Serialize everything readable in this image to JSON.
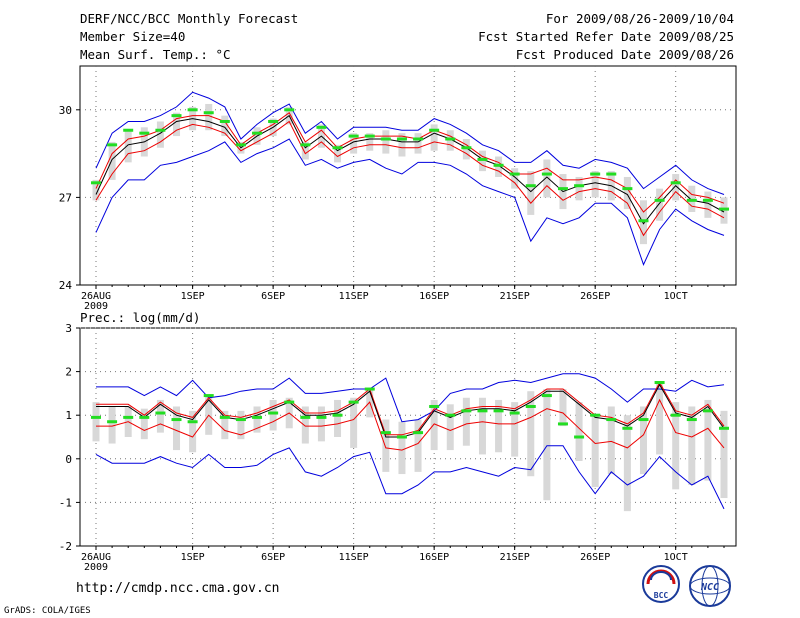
{
  "header": {
    "title": "DERF/NCC/BCC Monthly Forecast",
    "member_size": "Member Size=40",
    "variable": "Mean Surf. Temp.: °C",
    "period": "For 2009/08/26-2009/10/04",
    "fcst_started": "Fcst Started Refer Date 2009/08/25",
    "fcst_produced": "Fcst Produced Date 2009/08/26"
  },
  "footer": {
    "url": "http://cmdp.ncc.cma.gov.cn",
    "grads": "GrADS: COLA/IGES",
    "logo_bcc": "BCC",
    "logo_ncc": "NCC"
  },
  "colors": {
    "max_min": "#0000dd",
    "mean": "#000000",
    "pm_sd": "#ee0000",
    "median": "#22dd22",
    "spread_bar": "#d8d8d8"
  },
  "chart_data": [
    {
      "type": "line",
      "id": "temperature",
      "title": "",
      "ylabel": "Mean Surf. Temp.: °C",
      "ylim": [
        24,
        31.5
      ],
      "yticks": [
        24,
        27,
        30
      ],
      "grid": true,
      "day_index_range": [
        0,
        39
      ],
      "xtick_labels": [
        {
          "day": 0,
          "label": "26AUG",
          "sub": "2009"
        },
        {
          "day": 6,
          "label": "1SEP"
        },
        {
          "day": 11,
          "label": "6SEP"
        },
        {
          "day": 16,
          "label": "11SEP"
        },
        {
          "day": 21,
          "label": "16SEP"
        },
        {
          "day": 26,
          "label": "21SEP"
        },
        {
          "day": 31,
          "label": "26SEP"
        },
        {
          "day": 36,
          "label": "1OCT"
        }
      ],
      "series": [
        {
          "name": "max",
          "values": [
            28.0,
            29.2,
            29.6,
            29.6,
            29.8,
            30.1,
            30.6,
            30.4,
            30.1,
            29.0,
            29.5,
            29.9,
            30.2,
            29.2,
            29.6,
            29.0,
            29.4,
            29.4,
            29.4,
            29.3,
            29.3,
            29.7,
            29.5,
            29.2,
            28.8,
            28.6,
            28.2,
            28.2,
            28.6,
            28.1,
            28.0,
            28.3,
            28.2,
            28.0,
            27.3,
            27.7,
            28.1,
            27.6,
            27.3,
            27.1
          ]
        },
        {
          "name": "median",
          "values": [
            27.5,
            28.8,
            29.3,
            29.2,
            29.3,
            29.8,
            30.0,
            29.9,
            29.6,
            28.8,
            29.2,
            29.6,
            30.0,
            28.8,
            29.4,
            28.7,
            29.1,
            29.1,
            29.0,
            29.0,
            29.0,
            29.3,
            29.0,
            28.7,
            28.3,
            28.1,
            27.8,
            27.4,
            27.8,
            27.3,
            27.4,
            27.8,
            27.8,
            27.3,
            26.2,
            26.9,
            27.5,
            26.9,
            26.9,
            26.6
          ]
        },
        {
          "name": "plus_sd",
          "values": [
            27.3,
            28.5,
            29.0,
            29.1,
            29.3,
            29.7,
            29.8,
            29.8,
            29.6,
            28.8,
            29.2,
            29.5,
            29.9,
            28.9,
            29.3,
            28.7,
            29.0,
            29.1,
            29.1,
            29.1,
            29.0,
            29.3,
            29.1,
            28.8,
            28.4,
            28.2,
            27.8,
            27.8,
            28.0,
            27.6,
            27.6,
            27.7,
            27.6,
            27.3,
            26.5,
            27.0,
            27.6,
            27.1,
            27.0,
            26.8
          ]
        },
        {
          "name": "mean",
          "values": [
            27.1,
            28.3,
            28.8,
            28.9,
            29.2,
            29.6,
            29.7,
            29.6,
            29.4,
            28.7,
            29.1,
            29.4,
            29.8,
            28.7,
            29.1,
            28.6,
            28.9,
            29.0,
            29.0,
            28.9,
            28.9,
            29.2,
            29.0,
            28.7,
            28.3,
            28.1,
            27.7,
            27.2,
            27.7,
            27.2,
            27.4,
            27.5,
            27.4,
            27.1,
            26.1,
            26.8,
            27.4,
            26.9,
            26.8,
            26.5
          ]
        },
        {
          "name": "minus_sd",
          "values": [
            26.9,
            27.8,
            28.5,
            28.6,
            28.9,
            29.3,
            29.5,
            29.4,
            29.2,
            28.6,
            28.9,
            29.2,
            29.6,
            28.5,
            28.9,
            28.4,
            28.7,
            28.8,
            28.8,
            28.7,
            28.7,
            28.9,
            28.8,
            28.5,
            28.1,
            27.9,
            27.5,
            26.8,
            27.4,
            26.9,
            27.2,
            27.3,
            27.2,
            26.8,
            25.7,
            26.5,
            27.2,
            26.7,
            26.6,
            26.3
          ]
        },
        {
          "name": "min",
          "values": [
            25.8,
            27.0,
            27.6,
            27.6,
            28.1,
            28.2,
            28.4,
            28.6,
            28.9,
            28.2,
            28.5,
            28.7,
            29.0,
            28.1,
            28.3,
            28.0,
            28.2,
            28.3,
            28.0,
            27.8,
            28.2,
            28.2,
            28.1,
            27.8,
            27.4,
            27.2,
            27.0,
            25.5,
            26.3,
            26.1,
            26.3,
            26.8,
            26.8,
            26.3,
            24.7,
            25.9,
            26.6,
            26.2,
            25.9,
            25.7
          ]
        },
        {
          "name": "bar_top",
          "values": [
            27.6,
            28.9,
            29.3,
            29.4,
            29.6,
            29.9,
            30.1,
            30.2,
            29.8,
            28.9,
            29.4,
            29.7,
            30.1,
            28.9,
            29.5,
            28.8,
            29.2,
            29.2,
            29.3,
            29.2,
            29.2,
            29.5,
            29.3,
            29.0,
            28.6,
            28.4,
            28.0,
            27.9,
            28.3,
            27.8,
            27.7,
            27.9,
            27.9,
            27.7,
            26.9,
            27.3,
            27.8,
            27.4,
            27.2,
            27.0
          ]
        },
        {
          "name": "bar_bottom",
          "values": [
            26.9,
            27.6,
            28.2,
            28.4,
            28.7,
            29.1,
            29.3,
            29.3,
            29.1,
            28.5,
            28.8,
            29.1,
            29.5,
            28.3,
            28.7,
            28.2,
            28.5,
            28.6,
            28.5,
            28.4,
            28.5,
            28.6,
            28.6,
            28.3,
            27.9,
            27.7,
            27.3,
            26.4,
            27.0,
            26.6,
            26.9,
            27.0,
            26.9,
            26.6,
            25.4,
            26.2,
            26.9,
            26.5,
            26.3,
            26.1
          ]
        }
      ]
    },
    {
      "type": "line",
      "id": "precipitation",
      "title": "Prec.: log(mm/d)",
      "ylabel": "Prec.: log(mm/d)",
      "ylim": [
        -2,
        3
      ],
      "yticks": [
        -2,
        -1,
        0,
        1,
        2,
        3
      ],
      "grid": true,
      "day_index_range": [
        0,
        39
      ],
      "xtick_labels": [
        {
          "day": 0,
          "label": "26AUG",
          "sub": "2009"
        },
        {
          "day": 6,
          "label": "1SEP"
        },
        {
          "day": 11,
          "label": "6SEP"
        },
        {
          "day": 16,
          "label": "11SEP"
        },
        {
          "day": 21,
          "label": "16SEP"
        },
        {
          "day": 26,
          "label": "21SEP"
        },
        {
          "day": 31,
          "label": "26SEP"
        },
        {
          "day": 36,
          "label": "1OCT"
        }
      ],
      "series": [
        {
          "name": "max",
          "values": [
            1.65,
            1.65,
            1.65,
            1.45,
            1.65,
            1.45,
            1.8,
            1.4,
            1.45,
            1.55,
            1.6,
            1.6,
            1.85,
            1.5,
            1.5,
            1.55,
            1.6,
            1.6,
            1.85,
            0.85,
            0.9,
            1.1,
            1.5,
            1.6,
            1.6,
            1.75,
            1.8,
            1.75,
            1.85,
            1.95,
            1.95,
            1.85,
            1.6,
            1.3,
            1.6,
            1.6,
            1.55,
            1.8,
            1.65,
            1.7
          ]
        },
        {
          "name": "median",
          "values": [
            0.95,
            0.85,
            0.95,
            0.95,
            1.05,
            0.9,
            0.85,
            1.45,
            0.95,
            0.9,
            0.95,
            1.05,
            1.3,
            0.95,
            0.95,
            1.0,
            1.3,
            1.6,
            0.6,
            0.5,
            0.6,
            1.2,
            1.0,
            1.1,
            1.1,
            1.1,
            1.05,
            1.2,
            1.45,
            0.8,
            0.5,
            1.0,
            0.9,
            0.7,
            0.9,
            1.75,
            1.0,
            0.9,
            1.1,
            0.7
          ]
        },
        {
          "name": "plus_sd",
          "values": [
            1.25,
            1.25,
            1.25,
            1.0,
            1.3,
            1.05,
            0.95,
            1.4,
            1.0,
            0.95,
            1.05,
            1.2,
            1.35,
            1.05,
            1.05,
            1.1,
            1.3,
            1.6,
            0.55,
            0.55,
            0.65,
            1.15,
            1.0,
            1.15,
            1.2,
            1.2,
            1.15,
            1.35,
            1.6,
            1.6,
            1.3,
            1.0,
            0.95,
            0.8,
            1.05,
            1.75,
            1.1,
            1.0,
            1.25,
            0.75
          ]
        },
        {
          "name": "mean",
          "values": [
            1.2,
            1.2,
            1.2,
            0.95,
            1.25,
            1.0,
            0.9,
            1.35,
            0.95,
            0.9,
            1.0,
            1.15,
            1.3,
            1.0,
            1.0,
            1.05,
            1.25,
            1.55,
            0.5,
            0.5,
            0.6,
            1.1,
            0.95,
            1.1,
            1.15,
            1.15,
            1.1,
            1.3,
            1.55,
            1.55,
            1.25,
            0.95,
            0.9,
            0.75,
            1.0,
            1.7,
            1.05,
            0.95,
            1.2,
            0.7
          ]
        },
        {
          "name": "minus_sd",
          "values": [
            0.75,
            0.75,
            0.85,
            0.65,
            0.8,
            0.65,
            0.5,
            1.0,
            0.65,
            0.55,
            0.7,
            0.85,
            1.05,
            0.75,
            0.75,
            0.8,
            0.9,
            1.3,
            0.25,
            0.2,
            0.35,
            0.8,
            0.65,
            0.8,
            0.85,
            0.8,
            0.8,
            0.95,
            1.15,
            1.05,
            0.7,
            0.35,
            0.4,
            0.25,
            0.55,
            1.35,
            0.6,
            0.5,
            0.7,
            0.25
          ]
        },
        {
          "name": "min",
          "values": [
            0.1,
            -0.1,
            -0.1,
            -0.1,
            0.05,
            -0.1,
            -0.2,
            0.1,
            -0.2,
            -0.2,
            -0.15,
            0.1,
            0.25,
            -0.3,
            -0.4,
            -0.2,
            0.05,
            0.15,
            -0.8,
            -0.8,
            -0.6,
            -0.3,
            -0.3,
            -0.2,
            -0.3,
            -0.4,
            -0.2,
            -0.25,
            0.3,
            0.3,
            -0.3,
            -0.8,
            -0.3,
            -0.6,
            -0.4,
            0.05,
            -0.3,
            -0.6,
            -0.4,
            -1.15
          ]
        },
        {
          "name": "bar_top",
          "values": [
            1.3,
            1.2,
            1.2,
            1.15,
            1.35,
            1.2,
            1.1,
            1.45,
            1.1,
            1.1,
            1.2,
            1.35,
            1.4,
            1.2,
            1.2,
            1.35,
            1.4,
            1.6,
            0.9,
            0.85,
            0.9,
            1.35,
            1.25,
            1.4,
            1.4,
            1.35,
            1.3,
            1.55,
            1.6,
            1.6,
            1.3,
            1.0,
            1.2,
            1.0,
            1.2,
            1.75,
            1.3,
            1.2,
            1.35,
            1.1
          ]
        },
        {
          "name": "bar_bottom",
          "values": [
            0.4,
            0.35,
            0.5,
            0.45,
            0.6,
            0.2,
            0.15,
            0.55,
            0.45,
            0.45,
            0.6,
            0.65,
            0.7,
            0.35,
            0.4,
            0.5,
            0.25,
            0.95,
            -0.3,
            -0.35,
            -0.3,
            0.2,
            0.2,
            0.3,
            0.1,
            0.15,
            0.05,
            -0.4,
            -0.95,
            0.75,
            -0.05,
            -0.65,
            -0.35,
            -1.2,
            -0.35,
            0.1,
            -0.7,
            -0.6,
            -0.5,
            -0.9
          ]
        }
      ]
    }
  ]
}
